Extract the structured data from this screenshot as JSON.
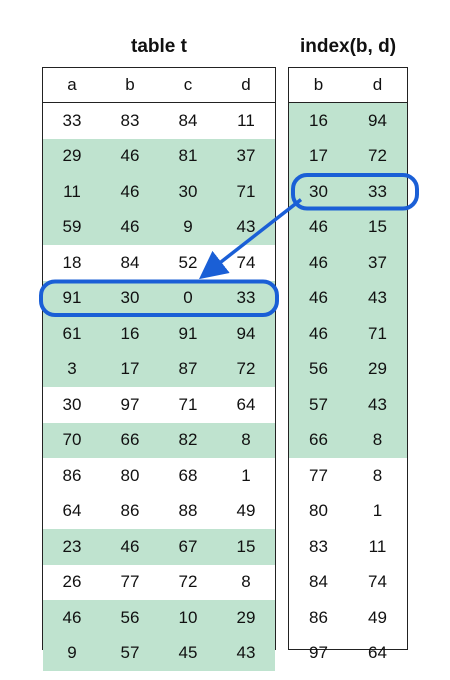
{
  "table_t": {
    "title": "table t",
    "columns": [
      "a",
      "b",
      "c",
      "d"
    ],
    "rows": [
      {
        "cells": [
          "33",
          "83",
          "84",
          "11"
        ],
        "shaded": false
      },
      {
        "cells": [
          "29",
          "46",
          "81",
          "37"
        ],
        "shaded": true
      },
      {
        "cells": [
          "11",
          "46",
          "30",
          "71"
        ],
        "shaded": true
      },
      {
        "cells": [
          "59",
          "46",
          "9",
          "43"
        ],
        "shaded": true
      },
      {
        "cells": [
          "18",
          "84",
          "52",
          "74"
        ],
        "shaded": false
      },
      {
        "cells": [
          "91",
          "30",
          "0",
          "33"
        ],
        "shaded": true
      },
      {
        "cells": [
          "61",
          "16",
          "91",
          "94"
        ],
        "shaded": true
      },
      {
        "cells": [
          "3",
          "17",
          "87",
          "72"
        ],
        "shaded": true
      },
      {
        "cells": [
          "30",
          "97",
          "71",
          "64"
        ],
        "shaded": false
      },
      {
        "cells": [
          "70",
          "66",
          "82",
          "8"
        ],
        "shaded": true
      },
      {
        "cells": [
          "86",
          "80",
          "68",
          "1"
        ],
        "shaded": false
      },
      {
        "cells": [
          "64",
          "86",
          "88",
          "49"
        ],
        "shaded": false
      },
      {
        "cells": [
          "23",
          "46",
          "67",
          "15"
        ],
        "shaded": true
      },
      {
        "cells": [
          "26",
          "77",
          "72",
          "8"
        ],
        "shaded": false
      },
      {
        "cells": [
          "46",
          "56",
          "10",
          "29"
        ],
        "shaded": true
      },
      {
        "cells": [
          "9",
          "57",
          "45",
          "43"
        ],
        "shaded": true
      }
    ]
  },
  "index_bd": {
    "title": "index(b, d)",
    "columns": [
      "b",
      "d"
    ],
    "rows": [
      {
        "cells": [
          "16",
          "94"
        ],
        "shaded": true
      },
      {
        "cells": [
          "17",
          "72"
        ],
        "shaded": true
      },
      {
        "cells": [
          "30",
          "33"
        ],
        "shaded": true
      },
      {
        "cells": [
          "46",
          "15"
        ],
        "shaded": true
      },
      {
        "cells": [
          "46",
          "37"
        ],
        "shaded": true
      },
      {
        "cells": [
          "46",
          "43"
        ],
        "shaded": true
      },
      {
        "cells": [
          "46",
          "71"
        ],
        "shaded": true
      },
      {
        "cells": [
          "56",
          "29"
        ],
        "shaded": true
      },
      {
        "cells": [
          "57",
          "43"
        ],
        "shaded": true
      },
      {
        "cells": [
          "66",
          "8"
        ],
        "shaded": true
      },
      {
        "cells": [
          "77",
          "8"
        ],
        "shaded": false
      },
      {
        "cells": [
          "80",
          "1"
        ],
        "shaded": false
      },
      {
        "cells": [
          "83",
          "11"
        ],
        "shaded": false
      },
      {
        "cells": [
          "84",
          "74"
        ],
        "shaded": false
      },
      {
        "cells": [
          "86",
          "49"
        ],
        "shaded": false
      },
      {
        "cells": [
          "97",
          "64"
        ],
        "shaded": false
      }
    ]
  },
  "highlight": {
    "index_row": 2,
    "table_row": 5,
    "color": "#1a5fd6"
  },
  "colors": {
    "shade": "#bfe3cf",
    "border": "#222222"
  }
}
